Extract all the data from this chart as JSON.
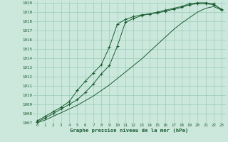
{
  "title": "Graphe pression niveau de la mer (hPa)",
  "bg_color": "#cce8dd",
  "grid_color": "#99ccbb",
  "line_color": "#1a5c30",
  "xlim": [
    0,
    23
  ],
  "ylim": [
    1007,
    1020
  ],
  "xticks": [
    0,
    1,
    2,
    3,
    4,
    5,
    6,
    7,
    8,
    9,
    10,
    11,
    12,
    13,
    14,
    15,
    16,
    17,
    18,
    19,
    20,
    21,
    22,
    23
  ],
  "yticks": [
    1007,
    1008,
    1009,
    1010,
    1011,
    1012,
    1013,
    1014,
    1015,
    1016,
    1017,
    1018,
    1019,
    1020
  ],
  "series1_marked": [
    1007.2,
    1007.7,
    1008.2,
    1008.7,
    1009.3,
    1010.5,
    1011.5,
    1012.4,
    1013.3,
    1015.2,
    1017.7,
    1018.2,
    1018.5,
    1018.7,
    1018.8,
    1019.0,
    1019.2,
    1019.4,
    1019.6,
    1019.9,
    1020.0,
    1020.0,
    1019.9,
    1019.2
  ],
  "series2_marked": [
    1007.1,
    1007.5,
    1008.0,
    1008.5,
    1009.0,
    1009.5,
    1010.3,
    1011.2,
    1012.3,
    1013.2,
    1015.3,
    1017.9,
    1018.3,
    1018.6,
    1018.8,
    1018.9,
    1019.1,
    1019.3,
    1019.5,
    1019.8,
    1019.9,
    1019.9,
    1019.8,
    1019.3
  ],
  "series3_line": [
    1007.0,
    1007.3,
    1007.7,
    1008.1,
    1008.5,
    1008.9,
    1009.4,
    1009.9,
    1010.5,
    1011.1,
    1011.8,
    1012.5,
    1013.2,
    1013.9,
    1014.7,
    1015.5,
    1016.3,
    1017.1,
    1017.8,
    1018.4,
    1019.0,
    1019.4,
    1019.6,
    1019.2
  ]
}
